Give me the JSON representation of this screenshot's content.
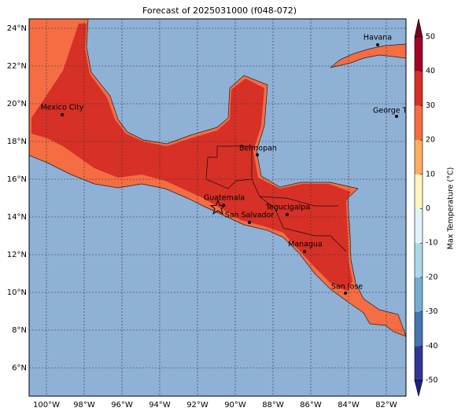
{
  "title": "Forecast of 2025031000 (f048-072)",
  "map": {
    "lon_ticks": [
      {
        "value": -100,
        "label": "100°W"
      },
      {
        "value": -98,
        "label": "98°W"
      },
      {
        "value": -96,
        "label": "96°W"
      },
      {
        "value": -94,
        "label": "94°W"
      },
      {
        "value": -92,
        "label": "92°W"
      },
      {
        "value": -90,
        "label": "90°W"
      },
      {
        "value": -88,
        "label": "88°W"
      },
      {
        "value": -86,
        "label": "86°W"
      },
      {
        "value": -84,
        "label": "84°W"
      },
      {
        "value": -82,
        "label": "82°W"
      }
    ],
    "lat_ticks": [
      {
        "value": 6,
        "label": "6°N"
      },
      {
        "value": 8,
        "label": "8°N"
      },
      {
        "value": 10,
        "label": "10°N"
      },
      {
        "value": 12,
        "label": "12°N"
      },
      {
        "value": 14,
        "label": "14°N"
      },
      {
        "value": 16,
        "label": "16°N"
      },
      {
        "value": 18,
        "label": "18°N"
      },
      {
        "value": 20,
        "label": "20°N"
      },
      {
        "value": 22,
        "label": "22°N"
      },
      {
        "value": 24,
        "label": "24°N"
      }
    ],
    "cities": [
      "Mexico City",
      "Havana",
      "George Town",
      "Belmopan",
      "Guatemala",
      "San Salvador",
      "Tegucigalpa",
      "Managua",
      "San Jose"
    ]
  },
  "colorbar": {
    "label": "Max Temperature (°C)",
    "ticks": [
      -50,
      -40,
      -30,
      -20,
      -10,
      0,
      10,
      20,
      30,
      40,
      50
    ],
    "colors": [
      "#313695",
      "#4575b4",
      "#74add1",
      "#abd9e9",
      "#e0f3f8",
      "#fff5c0",
      "#fdae61",
      "#f46d43",
      "#d73027",
      "#a50026"
    ],
    "under_color": "#22227a",
    "over_color": "#7a0020"
  }
}
